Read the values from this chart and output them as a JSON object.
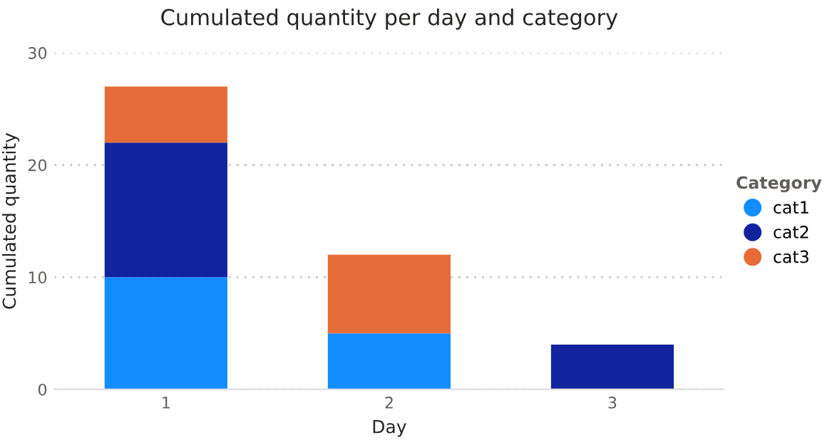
{
  "chart_data": {
    "type": "bar",
    "title": "Cumulated quantity per day and category",
    "xlabel": "Day",
    "ylabel": "Cumulated quantity",
    "legend_title": "Category",
    "categories": [
      "1",
      "2",
      "3"
    ],
    "series": [
      {
        "name": "cat1",
        "color": "#118dff",
        "values": [
          10,
          5,
          0
        ]
      },
      {
        "name": "cat2",
        "color": "#12239e",
        "values": [
          12,
          0,
          4
        ]
      },
      {
        "name": "cat3",
        "color": "#e66c37",
        "values": [
          5,
          7,
          0
        ]
      }
    ],
    "stacked": true,
    "ylim": [
      0,
      30
    ],
    "yticks": [
      0,
      10,
      20,
      30
    ],
    "grid": "y",
    "legend": "right"
  }
}
